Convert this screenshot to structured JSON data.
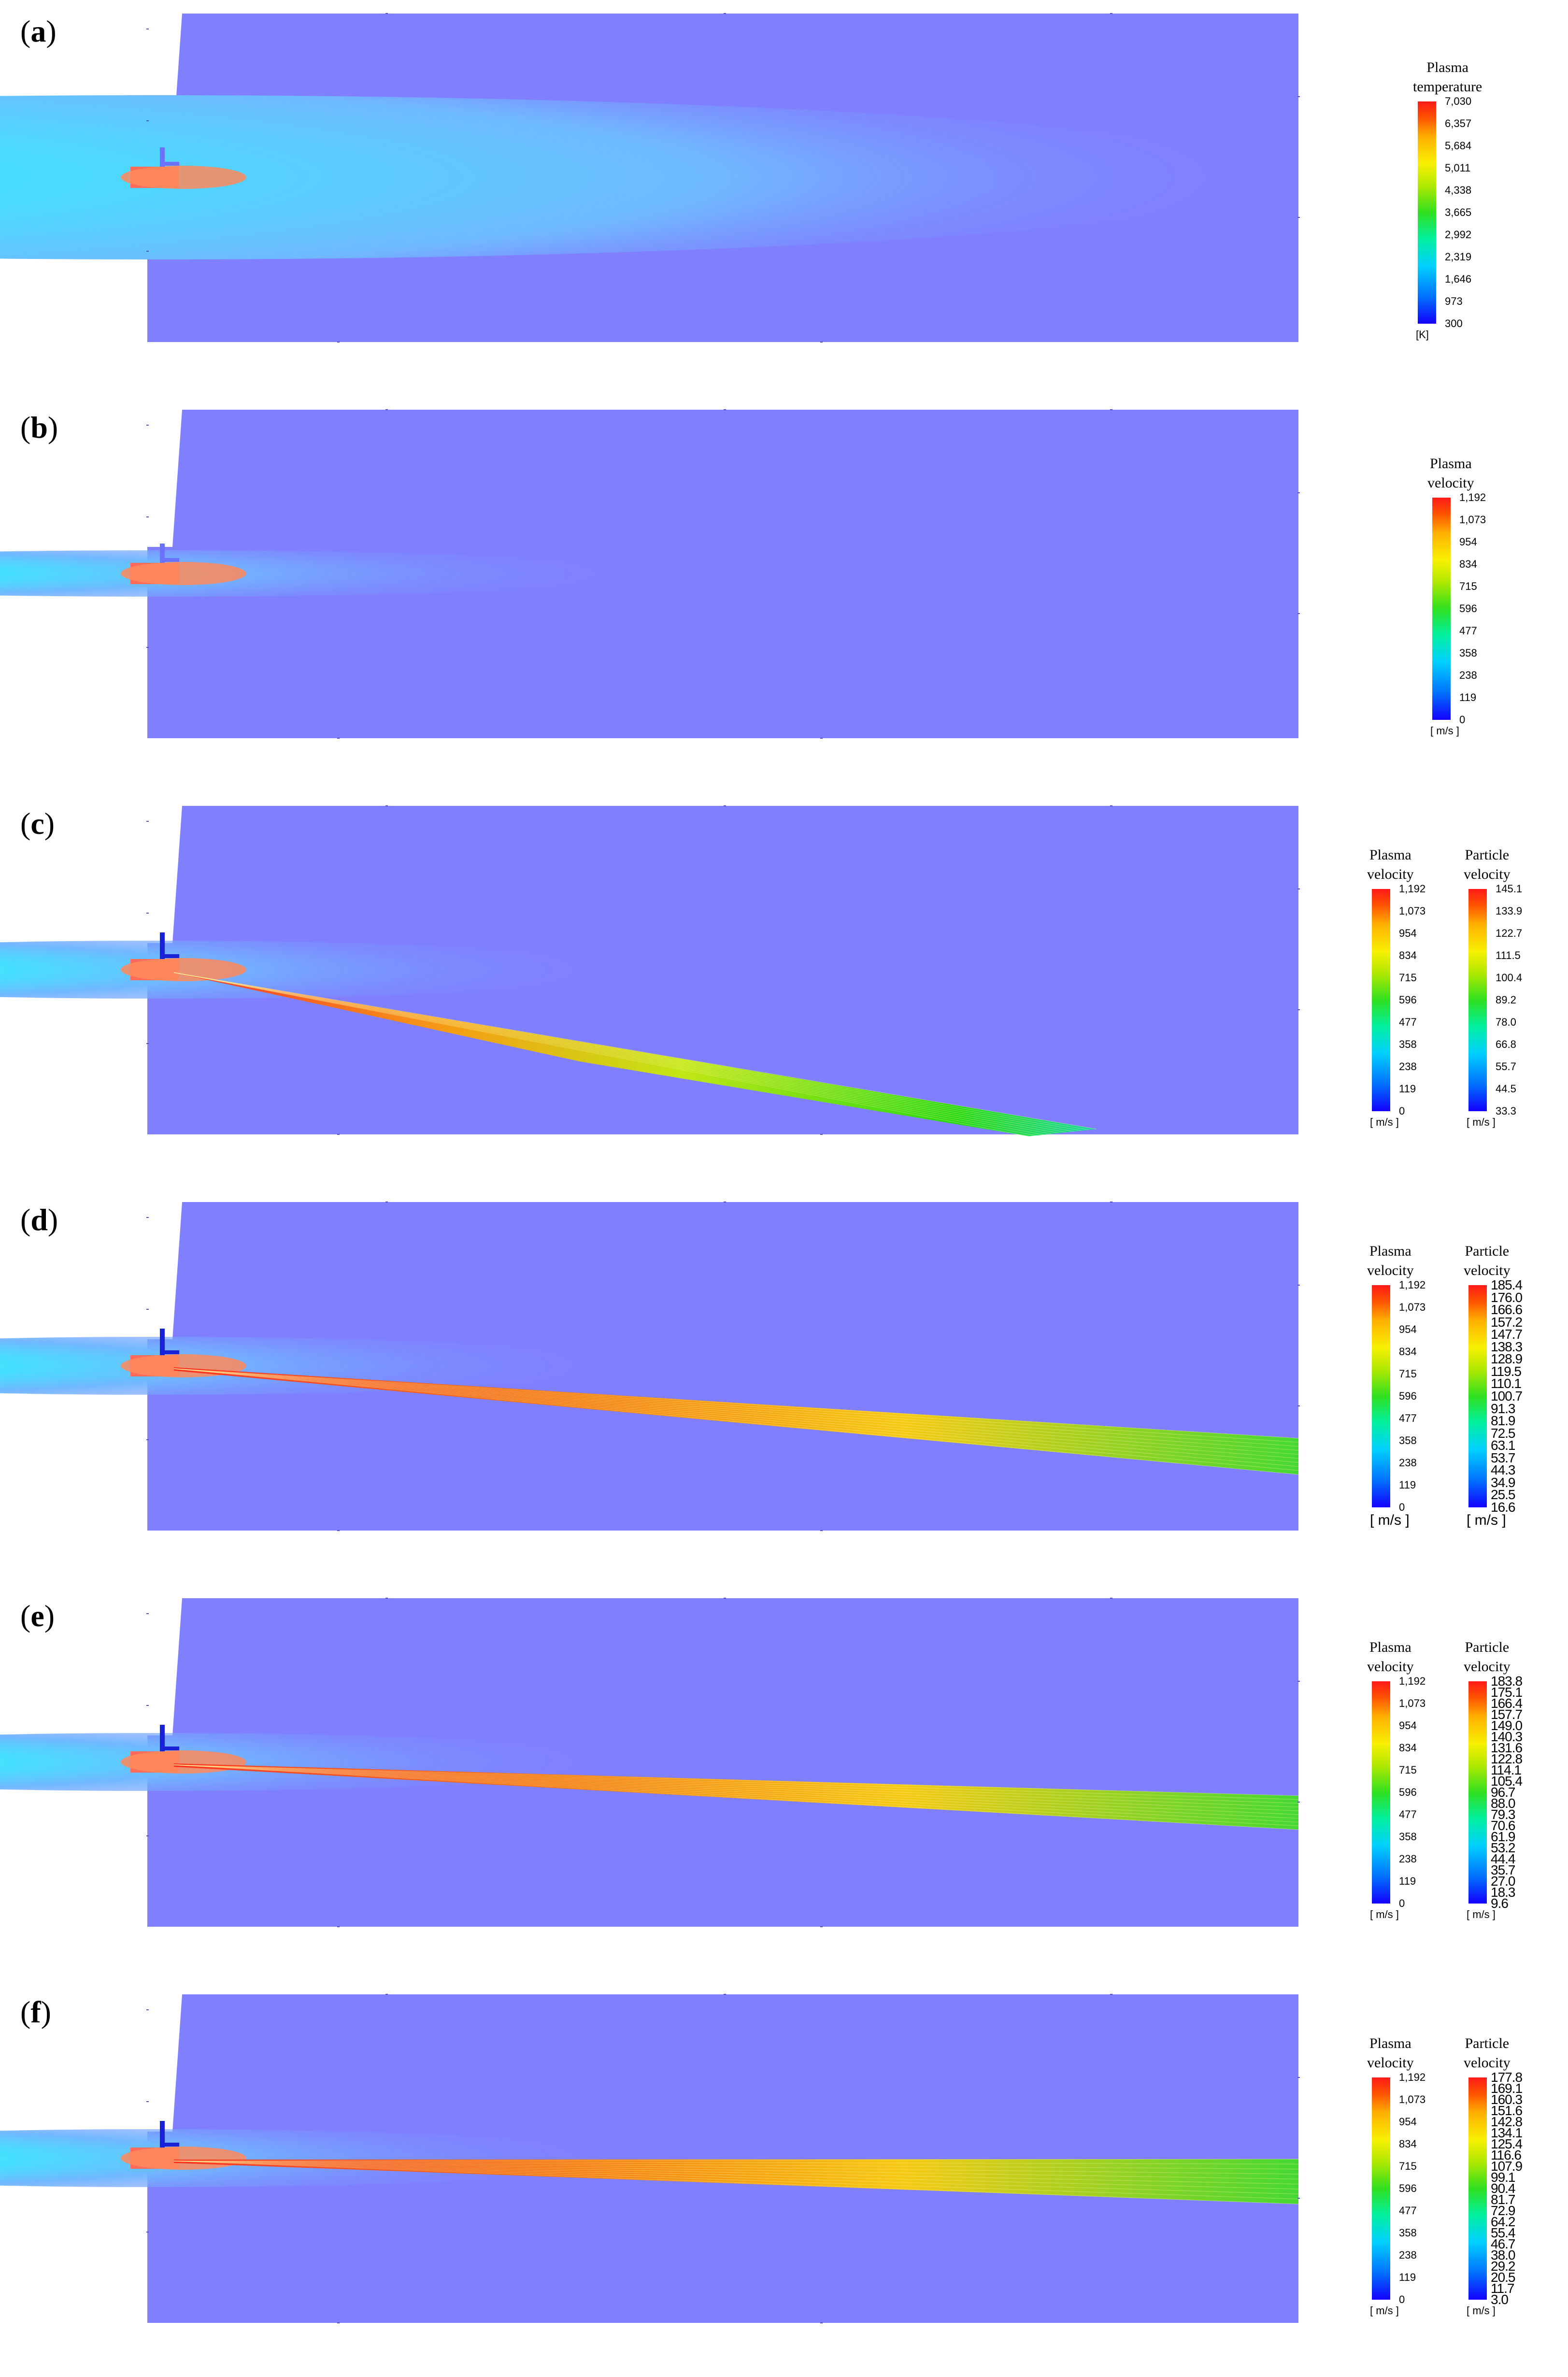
{
  "panels": [
    {
      "label_open": "(",
      "label_letter": "a",
      "label_close": ")",
      "legends": [
        {
          "title_line1": "Plasma",
          "title_line2": "temperature",
          "ticks": [
            "7,030",
            "6,357",
            "5,684",
            "5,011",
            "4,338",
            "3,665",
            "2,992",
            "2,319",
            "1,646",
            "973",
            "300"
          ],
          "unit": "[K]"
        }
      ]
    },
    {
      "label_open": "(",
      "label_letter": "b",
      "label_close": ")",
      "legends": [
        {
          "title_line1": "Plasma",
          "title_line2": "velocity",
          "ticks": [
            "1,192",
            "1,073",
            "954",
            "834",
            "715",
            "596",
            "477",
            "358",
            "238",
            "119",
            "0"
          ],
          "unit": "[ m/s ]"
        }
      ]
    },
    {
      "label_open": "(",
      "label_letter": "c",
      "label_close": ")",
      "legends": [
        {
          "title_line1": "Plasma",
          "title_line2": "velocity",
          "ticks": [
            "1,192",
            "1,073",
            "954",
            "834",
            "715",
            "596",
            "477",
            "358",
            "238",
            "119",
            "0"
          ],
          "unit": "[ m/s ]"
        },
        {
          "title_line1": "Particle",
          "title_line2": "velocity",
          "ticks": [
            "145.1",
            "133.9",
            "122.7",
            "111.5",
            "100.4",
            "89.2",
            "78.0",
            "66.8",
            "55.7",
            "44.5",
            "33.3"
          ],
          "unit": "[ m/s ]"
        }
      ]
    },
    {
      "label_open": "(",
      "label_letter": "d",
      "label_close": ")",
      "legends": [
        {
          "title_line1": "Plasma",
          "title_line2": "velocity",
          "ticks": [
            "1,192",
            "1,073",
            "954",
            "834",
            "715",
            "596",
            "477",
            "358",
            "238",
            "119",
            "0"
          ],
          "unit": "[ m/s ]"
        },
        {
          "title_line1": "Particle",
          "title_line2": "velocity",
          "ticks": [
            "185.4",
            "176.0",
            "166.6",
            "157.2",
            "147.7",
            "138.3",
            "128.9",
            "119.5",
            "110.1",
            "100.7",
            "91.3",
            "81.9",
            "72.5",
            "63.1",
            "53.7",
            "44.3",
            "34.9",
            "25.5",
            "16.6"
          ],
          "unit": "[ m/s ]"
        }
      ]
    },
    {
      "label_open": "(",
      "label_letter": "e",
      "label_close": ")",
      "legends": [
        {
          "title_line1": "Plasma",
          "title_line2": "velocity",
          "ticks": [
            "1,192",
            "1,073",
            "954",
            "834",
            "715",
            "596",
            "477",
            "358",
            "238",
            "119",
            "0"
          ],
          "unit": "[ m/s ]"
        },
        {
          "title_line1": "Particle",
          "title_line2": "velocity",
          "ticks": [
            "183.8",
            "175.1",
            "166.4",
            "157.7",
            "149.0",
            "140.3",
            "131.6",
            "122.8",
            "114.1",
            "105.4",
            "96.7",
            "88.0",
            "79.3",
            "70.6",
            "61.9",
            "53.2",
            "44.4",
            "35.7",
            "27.0",
            "18.3",
            "9.6"
          ],
          "unit": "[ m/s ]"
        }
      ]
    },
    {
      "label_open": "(",
      "label_letter": "f",
      "label_close": ")",
      "legends": [
        {
          "title_line1": "Plasma",
          "title_line2": "velocity",
          "ticks": [
            "1,192",
            "1,073",
            "954",
            "834",
            "715",
            "596",
            "477",
            "358",
            "238",
            "119",
            "0"
          ],
          "unit": "[ m/s ]"
        },
        {
          "title_line1": "Particle",
          "title_line2": "velocity",
          "ticks": [
            "177.8",
            "169.1",
            "160.3",
            "151.6",
            "142.8",
            "134.1",
            "125.4",
            "116.6",
            "107.9",
            "99.1",
            "90.4",
            "81.7",
            "72.9",
            "64.2",
            "55.4",
            "46.7",
            "38.0",
            "29.2",
            "20.5",
            "11.7",
            "3.0"
          ],
          "unit": "[ m/s ]"
        }
      ]
    }
  ],
  "colors": {
    "domain_background": "#8080ff",
    "jet_hot": "#ff6a5a",
    "jet_plume": "#30ffe8",
    "injector": "#1a22d8"
  }
}
